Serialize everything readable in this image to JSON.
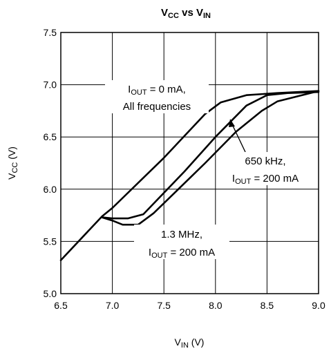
{
  "chart_data": {
    "type": "line",
    "title": {
      "main": "V",
      "sub1": "CC",
      "mid": " vs V",
      "sub2": "IN"
    },
    "xlabel": {
      "main": "V",
      "sub": "IN",
      "tail": " (V)"
    },
    "ylabel": {
      "main": "V",
      "sub": "CC",
      "tail": " (V)"
    },
    "xlim": [
      6.5,
      9.0
    ],
    "ylim": [
      5.0,
      7.5
    ],
    "x_ticks": [
      6.5,
      7.0,
      7.5,
      8.0,
      8.5,
      9.0
    ],
    "y_ticks": [
      5.0,
      5.5,
      6.0,
      6.5,
      7.0,
      7.5
    ],
    "x_tick_labels": [
      "6.5",
      "7.0",
      "7.5",
      "8.0",
      "8.5",
      "9.0"
    ],
    "y_tick_labels": [
      "5.0",
      "5.5",
      "6.0",
      "6.5",
      "7.0",
      "7.5"
    ],
    "grid": true,
    "series": [
      {
        "points": [
          [
            6.5,
            5.32
          ],
          [
            6.9,
            5.74
          ],
          [
            7.0,
            5.82
          ],
          [
            7.5,
            6.3
          ],
          [
            7.9,
            6.72
          ],
          [
            8.05,
            6.83
          ],
          [
            8.3,
            6.9
          ],
          [
            8.6,
            6.92
          ],
          [
            9.0,
            6.94
          ]
        ]
      },
      {
        "points": [
          [
            6.9,
            5.73
          ],
          [
            7.0,
            5.72
          ],
          [
            7.15,
            5.72
          ],
          [
            7.3,
            5.76
          ],
          [
            7.7,
            6.17
          ],
          [
            8.0,
            6.5
          ],
          [
            8.3,
            6.8
          ],
          [
            8.5,
            6.9
          ],
          [
            8.7,
            6.92
          ],
          [
            9.0,
            6.93
          ]
        ]
      },
      {
        "points": [
          [
            6.9,
            5.73
          ],
          [
            7.0,
            5.7
          ],
          [
            7.1,
            5.66
          ],
          [
            7.25,
            5.66
          ],
          [
            7.4,
            5.77
          ],
          [
            7.9,
            6.25
          ],
          [
            8.2,
            6.55
          ],
          [
            8.45,
            6.75
          ],
          [
            8.6,
            6.84
          ],
          [
            9.0,
            6.94
          ]
        ]
      }
    ],
    "annotations": [
      {
        "line1": {
          "main": "I",
          "sub": "OUT",
          "tail": " = 0 mA,"
        },
        "line2": "All frequencies"
      },
      {
        "line1": "650 kHz,",
        "line2": {
          "main": "I",
          "sub": "OUT",
          "tail": " = 200 mA"
        }
      },
      {
        "line1": "1.3 MHz,",
        "line2": {
          "main": "I",
          "sub": "OUT",
          "tail": " = 200 mA"
        }
      }
    ]
  }
}
